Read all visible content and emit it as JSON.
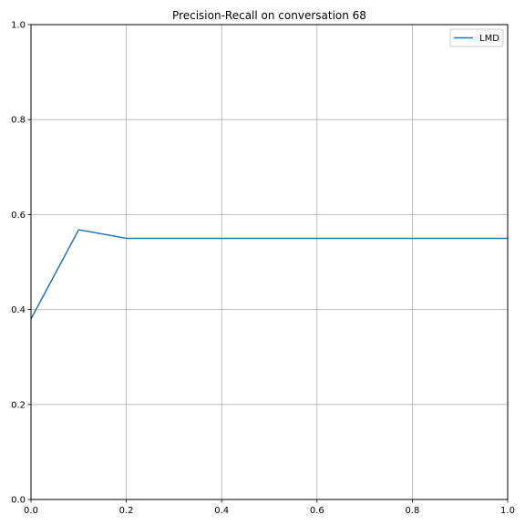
{
  "chart_data": {
    "type": "line",
    "title": "Precision-Recall on conversation 68",
    "xlabel": "",
    "ylabel": "",
    "xlim": [
      0,
      1
    ],
    "ylim": [
      0,
      1
    ],
    "grid": true,
    "legend_position": "top-right",
    "x_ticks": [
      "0.0",
      "0.2",
      "0.4",
      "0.6",
      "0.8",
      "1.0"
    ],
    "y_ticks": [
      "0.0",
      "0.2",
      "0.4",
      "0.6",
      "0.8",
      "1.0"
    ],
    "series": [
      {
        "name": "LMD",
        "color": "#1f77b4",
        "x": [
          0.0,
          0.1,
          0.2,
          0.3,
          0.4,
          0.5,
          0.6,
          0.7,
          0.8,
          0.9,
          1.0
        ],
        "y": [
          0.38,
          0.568,
          0.55,
          0.55,
          0.55,
          0.55,
          0.55,
          0.55,
          0.55,
          0.55,
          0.55
        ]
      }
    ]
  }
}
